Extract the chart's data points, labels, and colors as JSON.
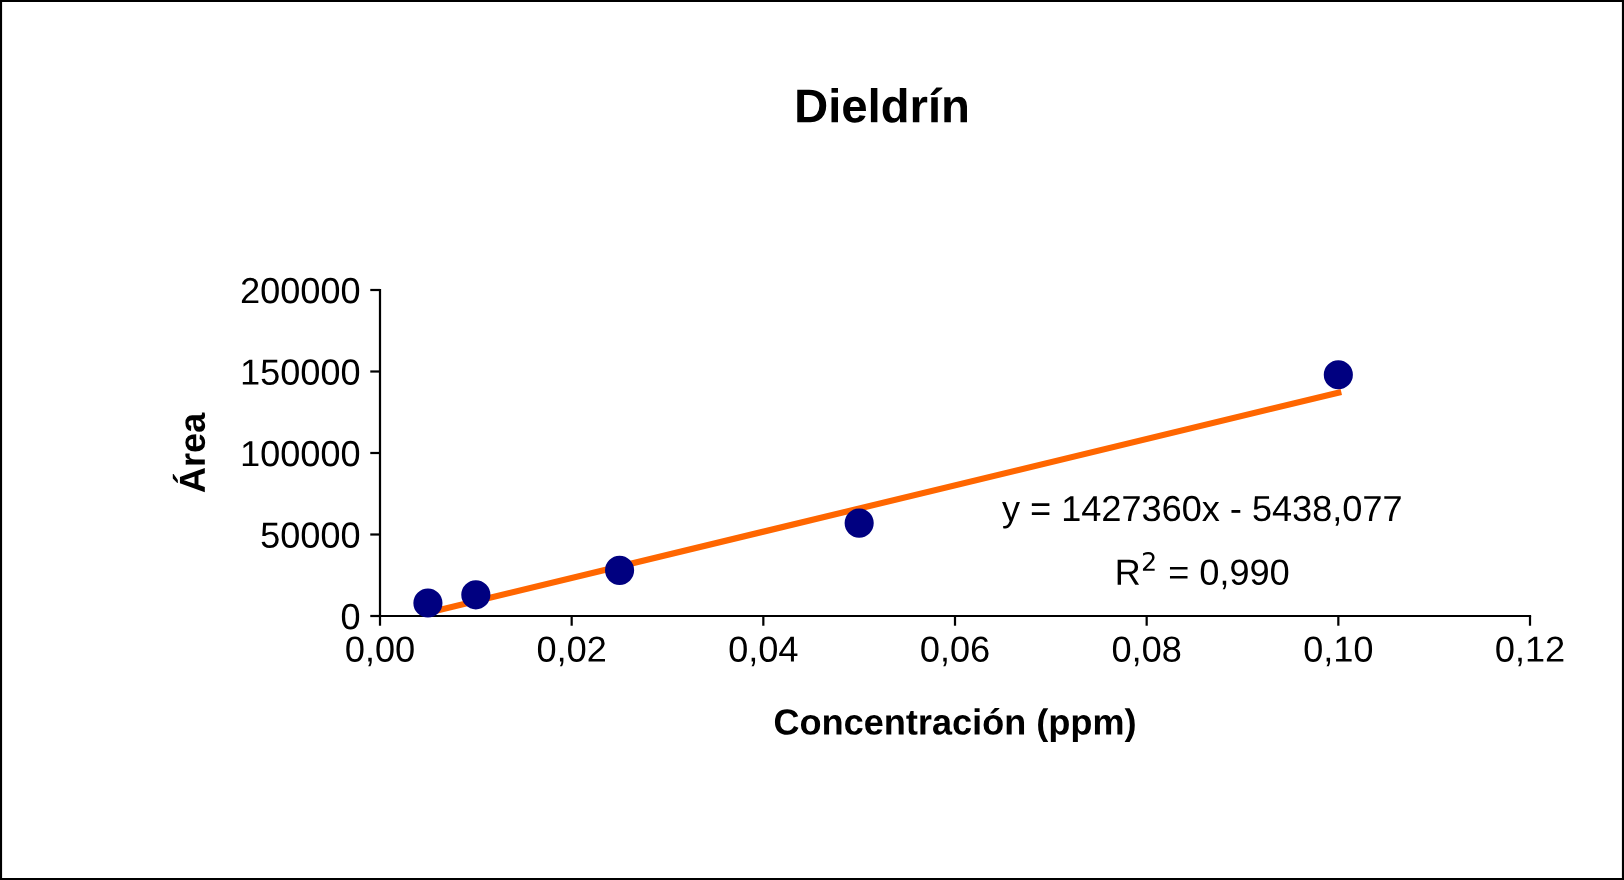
{
  "chart_data": {
    "type": "scatter",
    "title": "Dieldrín",
    "xlabel": "Concentración (ppm)",
    "ylabel": "Área",
    "x": [
      0.005,
      0.01,
      0.025,
      0.05,
      0.1
    ],
    "series": [
      {
        "color": "#000080",
        "marker": "circle",
        "values": [
          8000,
          13000,
          28000,
          57000,
          148000
        ]
      },
      {
        "type": "line",
        "color": "#ff6600",
        "marker": "none",
        "x": [
          0.005,
          0.1
        ],
        "values": [
          2000,
          137000
        ]
      }
    ],
    "xlim": [
      0,
      0.12
    ],
    "ylim": [
      0,
      200000
    ],
    "xticks": [
      {
        "value": 0,
        "label": "0,00"
      },
      {
        "value": 0.02,
        "label": "0,02"
      },
      {
        "value": 0.04,
        "label": "0,04"
      },
      {
        "value": 0.06,
        "label": "0,06"
      },
      {
        "value": 0.08,
        "label": "0,08"
      },
      {
        "value": 0.1,
        "label": "0,10"
      },
      {
        "value": 0.12,
        "label": "0,12"
      }
    ],
    "yticks": [
      0,
      50000,
      100000,
      150000,
      200000
    ],
    "annotations": [
      "y = 1427360x - 5438,077",
      "R$^{2}$ = 0,990"
    ],
    "grid": false,
    "legend": false
  }
}
